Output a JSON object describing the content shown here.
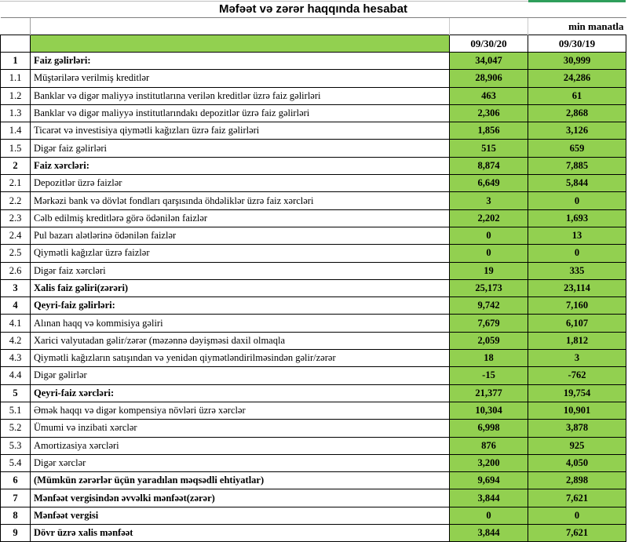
{
  "title": "Məfəət və zərər haqqında hesabat",
  "unit_label": "min manatla",
  "columns": [
    "09/30/20",
    "09/30/19"
  ],
  "colors": {
    "cell_green": "#92D050",
    "accent_strip": "#2E9E5B"
  },
  "rows": [
    {
      "num": "1",
      "label": "Faiz gəlirləri:",
      "v1": "34,047",
      "v2": "30,999",
      "bold": true
    },
    {
      "num": "1.1",
      "label": "Müştərilərə verilmiş kreditlər",
      "v1": "28,906",
      "v2": "24,286",
      "bold": false
    },
    {
      "num": "1.2",
      "label": "Banklar və digər maliyyə institutlarına verilən kreditlər üzrə faiz gəlirləri",
      "v1": "463",
      "v2": "61",
      "bold": false
    },
    {
      "num": "1.3",
      "label": "Banklar və digər maliyyə institutlarındakı depozitlər üzrə faiz gəlirləri",
      "v1": "2,306",
      "v2": "2,868",
      "bold": false
    },
    {
      "num": "1.4",
      "label": "Ticarət və investisiya qiymətli kağızları üzrə faiz gəlirləri",
      "v1": "1,856",
      "v2": "3,126",
      "bold": false
    },
    {
      "num": "1.5",
      "label": "Digər faiz gəlirləri",
      "v1": "515",
      "v2": "659",
      "bold": false
    },
    {
      "num": "2",
      "label": "Faiz xərcləri:",
      "v1": "8,874",
      "v2": "7,885",
      "bold": true
    },
    {
      "num": "2.1",
      "label": "Depozitlər üzrə faizlər",
      "v1": "6,649",
      "v2": "5,844",
      "bold": false
    },
    {
      "num": "2.2",
      "label": "Mərkəzi bank və dövlət fondları qarşısında öhdəliklər üzrə faiz xərcləri",
      "v1": "3",
      "v2": "0",
      "bold": false
    },
    {
      "num": "2.3",
      "label": "Cəlb edilmiş kreditlərə görə ödənilən faizlər",
      "v1": "2,202",
      "v2": "1,693",
      "bold": false
    },
    {
      "num": "2.4",
      "label": "Pul bazarı alətlərinə ödənilən faizlər",
      "v1": "0",
      "v2": "13",
      "bold": false
    },
    {
      "num": "2.5",
      "label": "Qiymətli kağızlar üzrə faizlər",
      "v1": "0",
      "v2": "0",
      "bold": false
    },
    {
      "num": "2.6",
      "label": "Digər faiz xərcləri",
      "v1": "19",
      "v2": "335",
      "bold": false
    },
    {
      "num": "3",
      "label": "Xalis faiz gəliri(zərəri)",
      "v1": "25,173",
      "v2": "23,114",
      "bold": true
    },
    {
      "num": "4",
      "label": "Qeyri-faiz gəlirləri:",
      "v1": "9,742",
      "v2": "7,160",
      "bold": true
    },
    {
      "num": "4.1",
      "label": "Alınan haqq və kommisiya gəliri",
      "v1": "7,679",
      "v2": "6,107",
      "bold": false
    },
    {
      "num": "4.2",
      "label": "Xarici valyutadan gəlir/zərər (məzənnə dəyişməsi daxil olmaqla",
      "v1": "2,059",
      "v2": "1,812",
      "bold": false
    },
    {
      "num": "4.3",
      "label": "Qiymətli kağızların satışından və yenidən qiymətləndirilməsindən gəlir/zərər",
      "v1": "18",
      "v2": "3",
      "bold": false
    },
    {
      "num": "4.4",
      "label": "Digər gəlirlər",
      "v1": "-15",
      "v2": "-762",
      "bold": false
    },
    {
      "num": "5",
      "label": "Qeyri-faiz xərcləri:",
      "v1": "21,377",
      "v2": "19,754",
      "bold": true
    },
    {
      "num": "5.1",
      "label": "Əmək haqqı və digər kompensiya növləri üzrə xərclər",
      "v1": "10,304",
      "v2": "10,901",
      "bold": false
    },
    {
      "num": "5.2",
      "label": "Ümumi və inzibati xərclər",
      "v1": "6,998",
      "v2": "3,878",
      "bold": false
    },
    {
      "num": "5.3",
      "label": "Amortizasiya xərcləri",
      "v1": "876",
      "v2": "925",
      "bold": false
    },
    {
      "num": "5.4",
      "label": "Digər xərclər",
      "v1": "3,200",
      "v2": "4,050",
      "bold": false
    },
    {
      "num": "6",
      "label": "(Mümkün zərərlər üçün yaradılan məqsədli ehtiyatlar)",
      "v1": "9,694",
      "v2": "2,898",
      "bold": true
    },
    {
      "num": "7",
      "label": "Mənfəət vergisindən əvvəlki mənfəət(zərər)",
      "v1": "3,844",
      "v2": "7,621",
      "bold": true
    },
    {
      "num": "8",
      "label": "Mənfəət vergisi",
      "v1": "0",
      "v2": "0",
      "bold": true
    },
    {
      "num": "9",
      "label": "Dövr üzrə xalis mənfəət",
      "v1": "3,844",
      "v2": "7,621",
      "bold": true
    }
  ]
}
